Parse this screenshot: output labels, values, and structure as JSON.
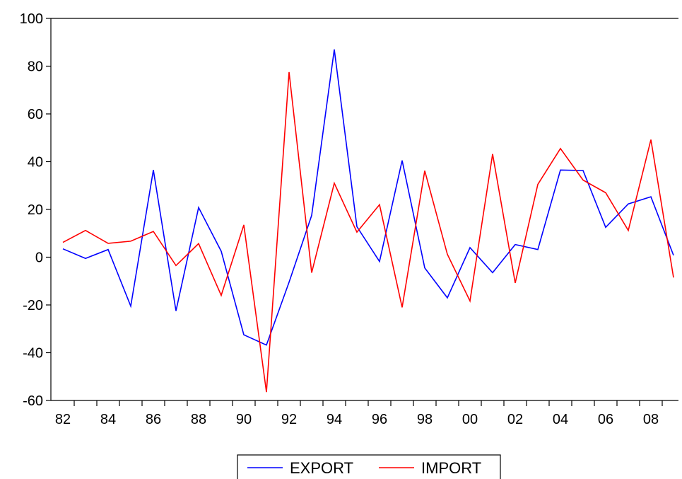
{
  "chart_data": {
    "type": "line",
    "title": "",
    "xlabel": "",
    "ylabel": "",
    "x": [
      1982,
      1983,
      1984,
      1985,
      1986,
      1987,
      1988,
      1989,
      1990,
      1991,
      1992,
      1993,
      1994,
      1995,
      1996,
      1997,
      1998,
      1999,
      2000,
      2001,
      2002,
      2003,
      2004,
      2005,
      2006,
      2007,
      2008,
      2009
    ],
    "x_tick_labels": [
      "82",
      "84",
      "86",
      "88",
      "90",
      "92",
      "94",
      "96",
      "98",
      "00",
      "02",
      "04",
      "06",
      "08"
    ],
    "y_tick_labels": [
      "100",
      "80",
      "60",
      "40",
      "20",
      "0",
      "-20",
      "-40",
      "-60"
    ],
    "ylim": [
      -60,
      100
    ],
    "grid": false,
    "legend_position": "bottom-center",
    "series": [
      {
        "name": "EXPORT",
        "color": "#0000ff",
        "values": [
          3.5,
          -0.5,
          3.2,
          -20.5,
          36.5,
          -22.5,
          20.8,
          2.5,
          -32.5,
          -36.8,
          -10.5,
          17.5,
          87.0,
          12.8,
          -1.8,
          40.5,
          -4.5,
          -17.0,
          4.0,
          -6.5,
          5.3,
          3.2,
          36.5,
          36.3,
          12.5,
          22.3,
          25.3,
          0.8
        ]
      },
      {
        "name": "IMPORT",
        "color": "#ff0000",
        "values": [
          6.2,
          11.2,
          5.8,
          6.7,
          10.8,
          -3.5,
          5.7,
          -16.0,
          13.5,
          -56.5,
          77.5,
          -6.5,
          31.0,
          10.5,
          22.0,
          -21.0,
          36.2,
          1.2,
          -18.3,
          43.2,
          -10.8,
          30.5,
          45.5,
          32.3,
          27.0,
          11.2,
          49.2,
          -8.5
        ]
      }
    ]
  }
}
